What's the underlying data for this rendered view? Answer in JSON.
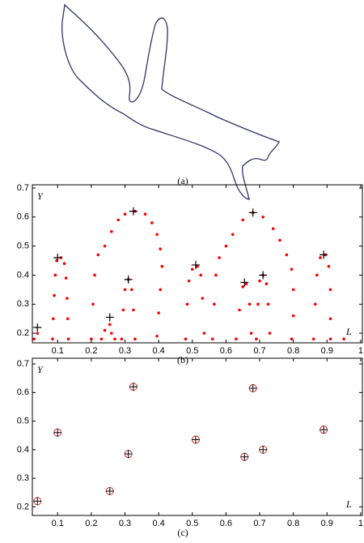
{
  "panel_a": {
    "label": "(a)"
  },
  "chart_data": [
    {
      "type": "scatter",
      "label": "(b)",
      "x_label": "L",
      "y_label": "Y",
      "xlim": [
        0.025,
        1.005
      ],
      "ylim": [
        0.167,
        0.711
      ],
      "xticks": [
        0.1,
        0.2,
        0.3,
        0.4,
        0.5,
        0.6,
        0.7,
        0.8,
        0.9,
        1
      ],
      "yticks": [
        0.2,
        0.3,
        0.4,
        0.5,
        0.6,
        0.7
      ],
      "series": [
        {
          "color": "#ff0000",
          "marker": "dot",
          "x": [
            0.03,
            0.04,
            0.085,
            0.087,
            0.09,
            0.093,
            0.097,
            0.11,
            0.12,
            0.125,
            0.128,
            0.13,
            0.132,
            0.2,
            0.205,
            0.21,
            0.22,
            0.24,
            0.26,
            0.28,
            0.3,
            0.33,
            0.36,
            0.38,
            0.395,
            0.405,
            0.41,
            0.405,
            0.4,
            0.395,
            0.23,
            0.24,
            0.255,
            0.26,
            0.27,
            0.29,
            0.295,
            0.3,
            0.31,
            0.32,
            0.325,
            0.33,
            0.48,
            0.485,
            0.49,
            0.5,
            0.515,
            0.525,
            0.53,
            0.535,
            0.56,
            0.565,
            0.57,
            0.58,
            0.6,
            0.62,
            0.65,
            0.68,
            0.71,
            0.74,
            0.76,
            0.78,
            0.795,
            0.8,
            0.8,
            0.795,
            0.63,
            0.64,
            0.65,
            0.66,
            0.67,
            0.675,
            0.69,
            0.695,
            0.7,
            0.71,
            0.72,
            0.725,
            0.73,
            0.86,
            0.865,
            0.87,
            0.88,
            0.895,
            0.905,
            0.91,
            0.91,
            0.91,
            0.95
          ],
          "values": [
            0.18,
            0.2,
            0.18,
            0.25,
            0.33,
            0.4,
            0.45,
            0.46,
            0.44,
            0.39,
            0.32,
            0.25,
            0.18,
            0.18,
            0.3,
            0.4,
            0.47,
            0.5,
            0.55,
            0.59,
            0.61,
            0.62,
            0.61,
            0.58,
            0.54,
            0.49,
            0.43,
            0.35,
            0.27,
            0.19,
            0.18,
            0.21,
            0.23,
            0.2,
            0.18,
            0.18,
            0.28,
            0.35,
            0.385,
            0.35,
            0.28,
            0.18,
            0.18,
            0.3,
            0.38,
            0.42,
            0.43,
            0.4,
            0.32,
            0.2,
            0.18,
            0.3,
            0.4,
            0.46,
            0.5,
            0.54,
            0.59,
            0.615,
            0.6,
            0.56,
            0.52,
            0.47,
            0.42,
            0.35,
            0.26,
            0.18,
            0.18,
            0.28,
            0.36,
            0.37,
            0.3,
            0.2,
            0.18,
            0.3,
            0.38,
            0.4,
            0.37,
            0.3,
            0.2,
            0.18,
            0.3,
            0.4,
            0.46,
            0.47,
            0.43,
            0.35,
            0.25,
            0.18,
            0.18
          ]
        },
        {
          "color": "#000000",
          "marker": "plus",
          "x": [
            0.04,
            0.1,
            0.255,
            0.31,
            0.325,
            0.51,
            0.655,
            0.68,
            0.71,
            0.89
          ],
          "values": [
            0.22,
            0.46,
            0.255,
            0.385,
            0.62,
            0.435,
            0.375,
            0.615,
            0.4,
            0.47
          ]
        }
      ]
    },
    {
      "type": "scatter",
      "label": "(c)",
      "x_label": "L",
      "y_label": "Y",
      "xlim": [
        0.025,
        1.005
      ],
      "ylim": [
        0.17,
        0.72
      ],
      "xticks": [
        0.1,
        0.2,
        0.3,
        0.4,
        0.5,
        0.6,
        0.7,
        0.8,
        0.9,
        1
      ],
      "yticks": [
        0.2,
        0.3,
        0.4,
        0.5,
        0.6,
        0.7
      ],
      "series": [
        {
          "color": "#cc3333",
          "marker": "circle-plus",
          "x": [
            0.04,
            0.1,
            0.255,
            0.31,
            0.325,
            0.51,
            0.655,
            0.68,
            0.71,
            0.89
          ],
          "values": [
            0.22,
            0.46,
            0.255,
            0.385,
            0.62,
            0.435,
            0.375,
            0.615,
            0.4,
            0.47
          ]
        }
      ]
    }
  ]
}
